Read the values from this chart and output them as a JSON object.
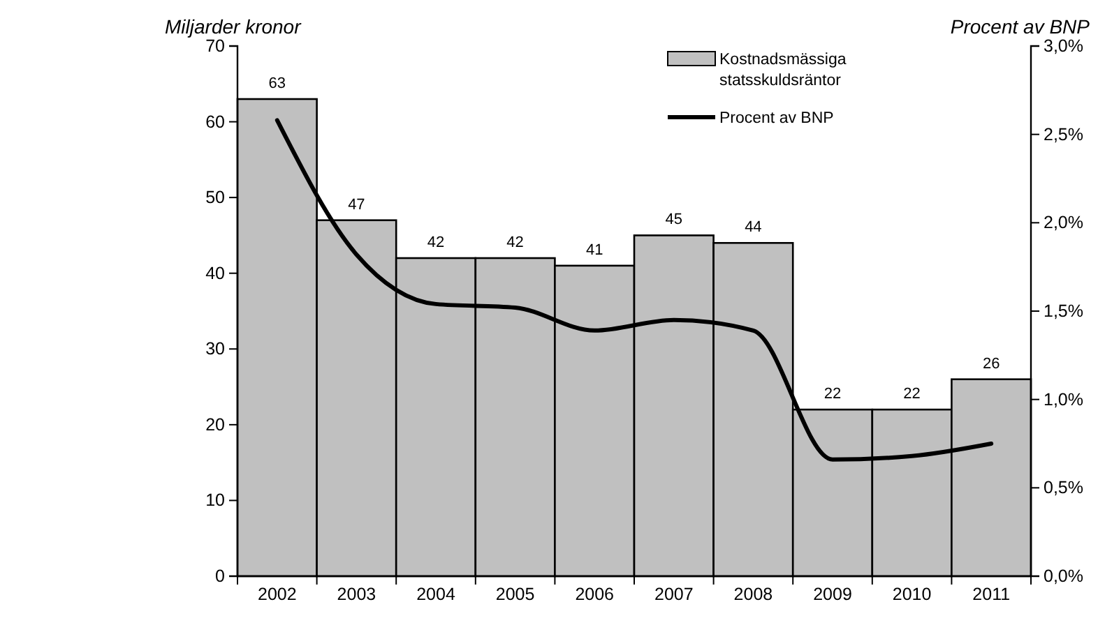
{
  "chart_data": {
    "type": "bar",
    "ylabel": "Miljarder kronor",
    "y2label": "Procent av BNP",
    "categories": [
      "2002",
      "2003",
      "2004",
      "2005",
      "2006",
      "2007",
      "2008",
      "2009",
      "2010",
      "2011"
    ],
    "series": [
      {
        "name": "Kostnadsmässiga statsskuldsräntor",
        "color": "#c0c0c0",
        "values": [
          63,
          47,
          42,
          42,
          41,
          45,
          44,
          22,
          22,
          26
        ],
        "value_labels": [
          "63",
          "47",
          "42",
          "42",
          "41",
          "45",
          "44",
          "22",
          "22",
          "26"
        ]
      },
      {
        "name": "Procent av BNP",
        "type": "line",
        "axis": "y2",
        "color": "#000000",
        "values": [
          2.58,
          1.82,
          1.54,
          1.52,
          1.39,
          1.45,
          1.39,
          0.66,
          0.68,
          0.75
        ]
      }
    ],
    "ylim": [
      0,
      70
    ],
    "yticks": [
      0,
      10,
      20,
      30,
      40,
      50,
      60,
      70
    ],
    "y2lim": [
      0,
      3
    ],
    "y2ticks": [
      {
        "value": 0,
        "label": "0,0%"
      },
      {
        "value": 0.5,
        "label": "0,5%"
      },
      {
        "value": 1,
        "label": "1,0%"
      },
      {
        "value": 1.5,
        "label": "1,5%"
      },
      {
        "value": 2,
        "label": "2,0%"
      },
      {
        "value": 2.5,
        "label": "2,5%"
      },
      {
        "value": 3,
        "label": "3,0%"
      }
    ],
    "grid": false,
    "legend": "top right",
    "marker": "none",
    "line_style": "solid"
  }
}
